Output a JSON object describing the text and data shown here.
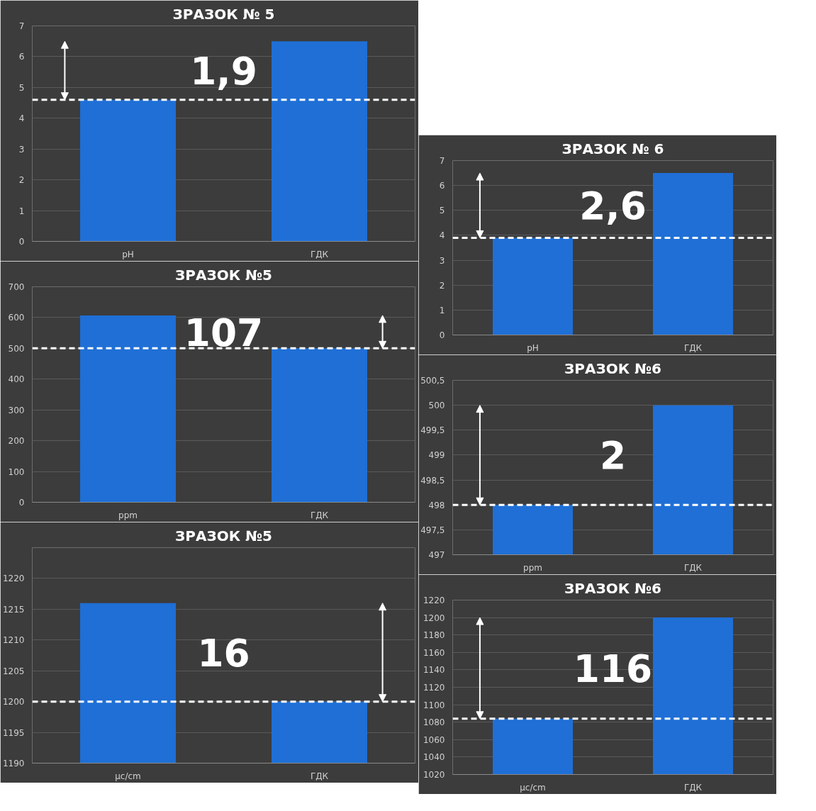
{
  "chart_data": [
    {
      "type": "bar",
      "title": "ЗРАЗОК № 5",
      "categories": [
        "pH",
        "ГДК"
      ],
      "values": [
        4.6,
        6.5
      ],
      "color": "#1f6fd6",
      "ylim": [
        0,
        7
      ],
      "yticks": [
        0,
        1,
        2,
        3,
        4,
        5,
        6,
        7
      ],
      "grid": "y",
      "ref_lines": [
        {
          "axis": "y",
          "value": 4.6,
          "color": "#ffffff",
          "line_style": "dashed"
        }
      ],
      "annotations": [
        "1,9"
      ]
    },
    {
      "type": "bar",
      "title": "ЗРАЗОК №5",
      "categories": [
        "ppm",
        "ГДК"
      ],
      "values": [
        607,
        500
      ],
      "color": "#1f6fd6",
      "ylim": [
        0,
        700
      ],
      "yticks": [
        0,
        100,
        200,
        300,
        400,
        500,
        600,
        700
      ],
      "grid": "y",
      "ref_lines": [
        {
          "axis": "y",
          "value": 500,
          "color": "#ffffff",
          "line_style": "dashed"
        }
      ],
      "annotations": [
        "107"
      ]
    },
    {
      "type": "bar",
      "title": "ЗРАЗОК №5",
      "categories": [
        "μc/cm",
        "ГДК"
      ],
      "values": [
        1216,
        1200
      ],
      "color": "#1f6fd6",
      "ylim": [
        1190,
        1225
      ],
      "yticks": [
        1190,
        1195,
        1200,
        1205,
        1210,
        1215,
        1220
      ],
      "grid": "y",
      "ref_lines": [
        {
          "axis": "y",
          "value": 1200,
          "color": "#ffffff",
          "line_style": "dashed"
        }
      ],
      "annotations": [
        "16"
      ]
    },
    {
      "type": "bar",
      "title": "ЗРАЗОК № 6",
      "categories": [
        "pH",
        "ГДК"
      ],
      "values": [
        3.9,
        6.5
      ],
      "color": "#1f6fd6",
      "ylim": [
        0,
        7
      ],
      "yticks": [
        0,
        1,
        2,
        3,
        4,
        5,
        6,
        7
      ],
      "grid": "y",
      "ref_lines": [
        {
          "axis": "y",
          "value": 3.9,
          "color": "#ffffff",
          "line_style": "dashed"
        }
      ],
      "annotations": [
        "2,6"
      ]
    },
    {
      "type": "bar",
      "title": "ЗРАЗОК №6",
      "categories": [
        "ppm",
        "ГДК"
      ],
      "values": [
        498,
        500
      ],
      "color": "#1f6fd6",
      "ylim": [
        497,
        500.5
      ],
      "yticks": [
        497,
        {
          "value": 497.5,
          "label": "497,5"
        },
        498,
        {
          "value": 498.5,
          "label": "498,5"
        },
        499,
        {
          "value": 499.5,
          "label": "499,5"
        },
        500,
        {
          "value": 500.5,
          "label": "500,5"
        }
      ],
      "grid": "y",
      "ref_lines": [
        {
          "axis": "y",
          "value": 498,
          "color": "#ffffff",
          "line_style": "dashed"
        }
      ],
      "annotations": [
        "2"
      ]
    },
    {
      "type": "bar",
      "title": "ЗРАЗОК №6",
      "categories": [
        "μc/cm",
        "ГДК"
      ],
      "values": [
        1084,
        1200
      ],
      "color": "#1f6fd6",
      "ylim": [
        1020,
        1220
      ],
      "yticks": [
        1020,
        1040,
        1060,
        1080,
        1100,
        1120,
        1140,
        1160,
        1180,
        1200,
        1220
      ],
      "grid": "y",
      "ref_lines": [
        {
          "axis": "y",
          "value": 1084,
          "color": "#ffffff",
          "line_style": "dashed"
        }
      ],
      "annotations": [
        "116"
      ]
    }
  ]
}
